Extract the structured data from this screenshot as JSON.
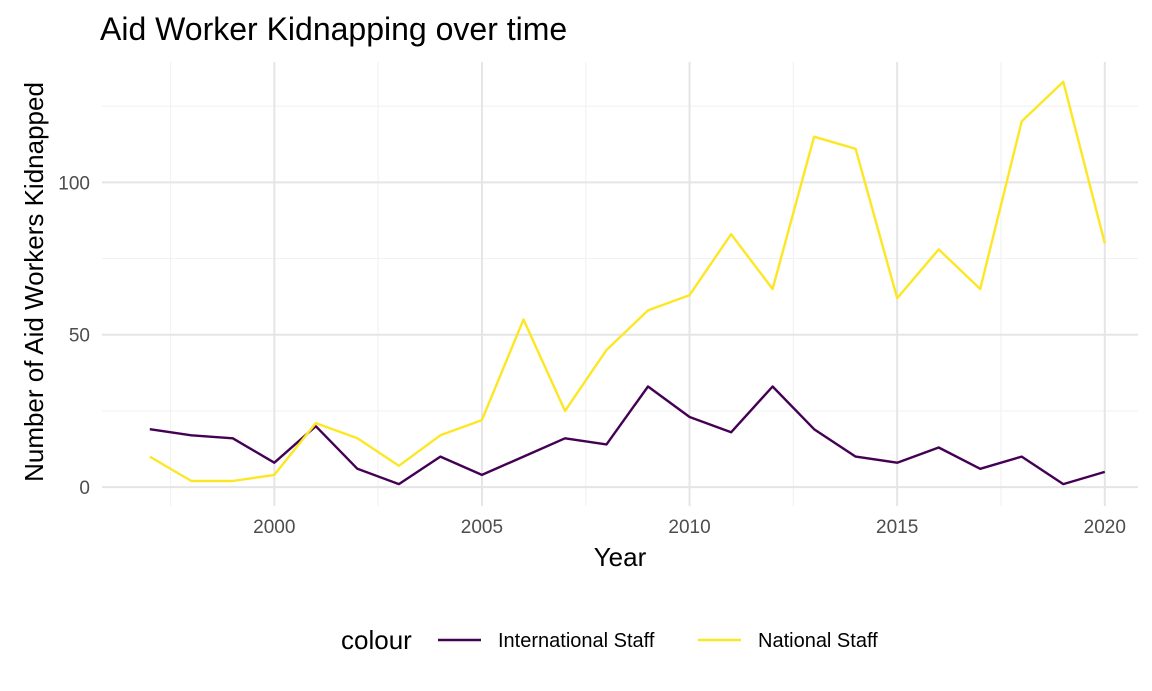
{
  "chart_data": {
    "type": "line",
    "title": "Aid Worker Kidnapping over time",
    "xlabel": "Year",
    "ylabel": "Number of Aid Workers Kidnapped",
    "x": [
      1997,
      1998,
      1999,
      2000,
      2001,
      2002,
      2003,
      2004,
      2005,
      2006,
      2007,
      2008,
      2009,
      2010,
      2011,
      2012,
      2013,
      2014,
      2015,
      2016,
      2017,
      2018,
      2019,
      2020
    ],
    "series": [
      {
        "name": "International Staff",
        "color": "#440154",
        "values": [
          19,
          17,
          16,
          8,
          20,
          6,
          1,
          10,
          4,
          10,
          16,
          14,
          33,
          23,
          18,
          33,
          19,
          10,
          8,
          13,
          6,
          10,
          1,
          5
        ]
      },
      {
        "name": "National Staff",
        "color": "#FDE725",
        "values": [
          10,
          2,
          2,
          4,
          21,
          16,
          7,
          17,
          22,
          55,
          25,
          45,
          58,
          63,
          83,
          65,
          115,
          111,
          62,
          78,
          65,
          120,
          133,
          80
        ]
      }
    ],
    "xticks": [
      "2000",
      "2005",
      "2010",
      "2015",
      "2020"
    ],
    "yticks": [
      "0",
      "50",
      "100"
    ],
    "xlim": [
      1995.85,
      2020.8
    ],
    "ylim": [
      -6.2,
      139.5
    ],
    "grid": true,
    "legend": {
      "title": "colour",
      "position": "bottom"
    }
  }
}
